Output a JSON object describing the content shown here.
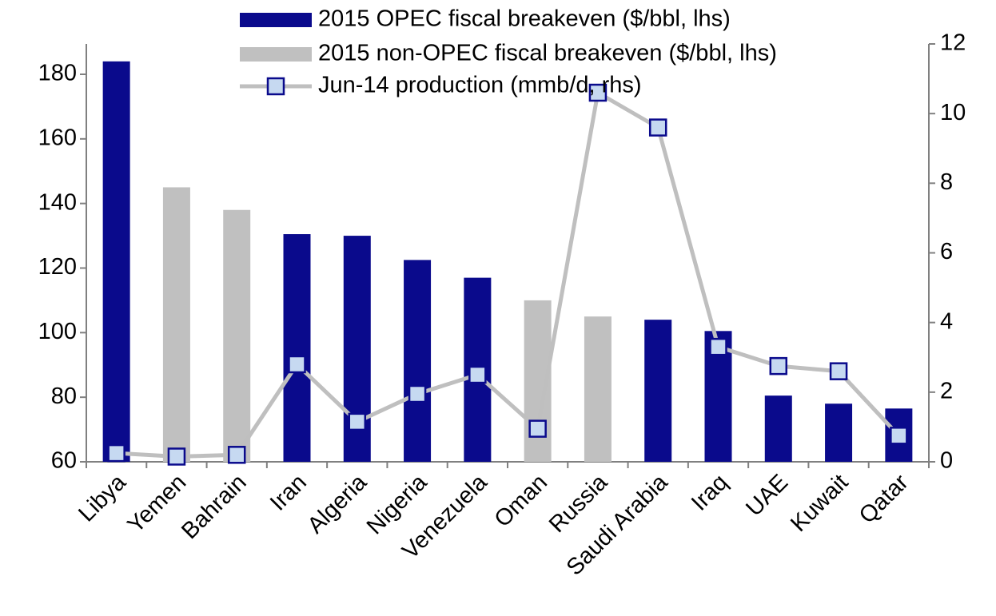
{
  "chart_data": {
    "type": "bar",
    "categories": [
      "Libya",
      "Yemen",
      "Bahrain",
      "Iran",
      "Algeria",
      "Nigeria",
      "Venezuela",
      "Oman",
      "Russia",
      "Saudi Arabia",
      "Iraq",
      "UAE",
      "Kuwait",
      "Qatar"
    ],
    "series": [
      {
        "name": "2015 OPEC fiscal breakeven ($/bbl, lhs)",
        "color": "#0a0a8c",
        "type": "bar",
        "values": [
          184,
          null,
          null,
          130.5,
          130,
          122.5,
          117,
          null,
          null,
          104,
          100.5,
          80.5,
          78,
          76.5
        ]
      },
      {
        "name": "2015 non-OPEC fiscal breakeven ($/bbl, lhs)",
        "color": "#c0c0c0",
        "type": "bar",
        "values": [
          null,
          145,
          138,
          null,
          null,
          null,
          null,
          110,
          105,
          null,
          null,
          null,
          null,
          null
        ]
      },
      {
        "name": "Jun-14 production (mmb/d, rhs)",
        "color": "#bfbfbf",
        "marker_color": "#c6d9f1",
        "marker_edge": "#0a0a8c",
        "type": "line",
        "axis": "y2",
        "values": [
          0.25,
          0.15,
          0.2,
          2.8,
          1.15,
          1.95,
          2.5,
          0.95,
          10.6,
          9.6,
          3.3,
          2.75,
          2.6,
          0.75
        ]
      }
    ],
    "ylim": [
      60,
      189.4
    ],
    "yticks": [
      60,
      80,
      100,
      120,
      140,
      160,
      180
    ],
    "y2lim": [
      0,
      12
    ],
    "y2ticks": [
      0,
      2,
      4,
      6,
      8,
      10,
      12
    ],
    "legend": "top",
    "grid": false
  }
}
